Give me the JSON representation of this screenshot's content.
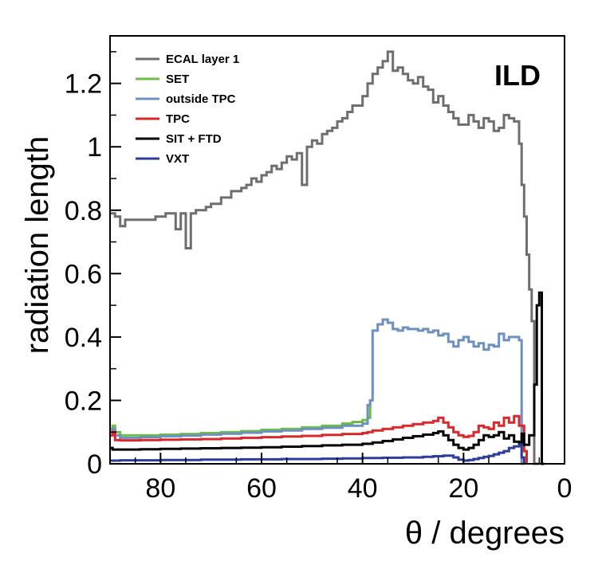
{
  "chart_data": {
    "type": "line",
    "title": "",
    "tag": "ILD",
    "xlabel": "θ / degrees",
    "ylabel": "radiation length",
    "xlim": [
      90,
      0
    ],
    "ylim": [
      0,
      1.35
    ],
    "x_reversed": true,
    "xticks": [
      80,
      60,
      40,
      20,
      0
    ],
    "xtick_labels": [
      "80",
      "60",
      "40",
      "20",
      "0"
    ],
    "yticks": [
      0,
      0.2,
      0.4,
      0.6,
      0.8,
      1,
      1.2
    ],
    "ytick_labels": [
      "0",
      "0.2",
      "0.4",
      "0.6",
      "0.8",
      "1",
      "1.2"
    ],
    "grid": false,
    "legend_position": "top-left",
    "line_style": "step",
    "series": [
      {
        "name": "ECAL layer 1",
        "color": "#6e6e6e",
        "x": [
          90,
          89,
          88,
          87,
          86,
          85,
          84,
          83,
          82,
          81,
          80,
          79,
          78,
          77,
          76,
          75,
          74,
          73,
          72,
          71,
          70,
          69,
          68,
          67,
          66,
          65,
          64,
          63,
          62,
          61,
          60,
          59,
          58,
          57,
          56,
          55,
          54,
          53,
          52,
          51,
          50,
          49,
          48,
          47,
          46,
          45,
          44,
          43,
          42,
          41,
          40,
          39,
          38,
          37,
          36,
          35,
          34,
          33,
          32,
          31,
          30,
          29,
          28,
          27,
          26,
          25,
          24,
          23,
          22,
          21,
          20,
          19,
          18,
          17,
          16,
          15,
          14,
          13,
          12,
          11,
          10,
          9,
          8.5,
          8,
          7.5,
          7,
          6.5,
          6,
          5.5,
          5
        ],
        "y": [
          0.79,
          0.78,
          0.75,
          0.77,
          0.77,
          0.77,
          0.77,
          0.77,
          0.77,
          0.78,
          0.78,
          0.79,
          0.79,
          0.74,
          0.79,
          0.68,
          0.79,
          0.8,
          0.8,
          0.81,
          0.82,
          0.82,
          0.84,
          0.84,
          0.86,
          0.86,
          0.87,
          0.88,
          0.9,
          0.89,
          0.91,
          0.92,
          0.94,
          0.93,
          0.95,
          0.97,
          0.96,
          0.98,
          0.88,
          1.0,
          1.02,
          1.01,
          1.04,
          1.05,
          1.06,
          1.08,
          1.09,
          1.11,
          1.13,
          1.13,
          1.16,
          1.2,
          1.23,
          1.25,
          1.27,
          1.3,
          1.24,
          1.25,
          1.23,
          1.21,
          1.2,
          1.22,
          1.19,
          1.18,
          1.14,
          1.16,
          1.13,
          1.11,
          1.09,
          1.07,
          1.07,
          1.1,
          1.08,
          1.06,
          1.09,
          1.08,
          1.05,
          1.06,
          1.1,
          1.09,
          1.08,
          1.01,
          0.88,
          0.78,
          0.66,
          0.55,
          0.45,
          0.0,
          0.0,
          0.0
        ]
      },
      {
        "name": "SET",
        "color": "#6cbd45",
        "x": [
          90,
          89.5,
          89,
          88,
          86,
          84,
          80,
          76,
          72,
          68,
          64,
          60,
          56,
          52,
          48,
          44,
          42,
          40,
          39,
          38.5
        ],
        "y": [
          0.11,
          0.12,
          0.1,
          0.09,
          0.09,
          0.09,
          0.092,
          0.094,
          0.097,
          0.1,
          0.103,
          0.107,
          0.11,
          0.115,
          0.12,
          0.127,
          0.132,
          0.138,
          0.145,
          0.2
        ]
      },
      {
        "name": "outside TPC",
        "color": "#6d8fc2",
        "x": [
          90,
          89.5,
          89,
          88,
          84,
          80,
          76,
          72,
          68,
          64,
          60,
          56,
          52,
          48,
          44,
          40,
          39,
          38.5,
          38,
          37,
          36,
          35,
          34,
          33,
          32,
          31,
          30,
          29,
          28,
          27,
          26,
          25,
          24,
          23,
          22,
          21,
          20,
          19,
          18,
          17,
          16,
          15,
          14,
          13,
          12,
          11,
          10,
          9,
          8.5,
          8
        ],
        "y": [
          0.1,
          0.11,
          0.09,
          0.082,
          0.084,
          0.087,
          0.089,
          0.092,
          0.095,
          0.098,
          0.102,
          0.105,
          0.11,
          0.114,
          0.12,
          0.127,
          0.185,
          0.2,
          0.42,
          0.44,
          0.455,
          0.445,
          0.425,
          0.42,
          0.43,
          0.425,
          0.425,
          0.42,
          0.425,
          0.415,
          0.42,
          0.405,
          0.41,
          0.385,
          0.37,
          0.39,
          0.4,
          0.385,
          0.37,
          0.38,
          0.36,
          0.375,
          0.37,
          0.41,
          0.39,
          0.4,
          0.4,
          0.39,
          0.0,
          0.0
        ]
      },
      {
        "name": "TPC",
        "color": "#d9282b",
        "x": [
          90,
          89.5,
          89,
          88,
          84,
          80,
          76,
          72,
          68,
          64,
          60,
          56,
          52,
          48,
          44,
          40,
          39,
          38,
          36,
          34,
          32,
          30,
          28,
          26,
          25,
          24,
          23,
          22,
          21,
          20,
          19,
          18,
          17,
          16,
          15,
          14,
          13,
          12,
          11,
          10,
          9,
          8,
          7.5
        ],
        "y": [
          0.09,
          0.1,
          0.075,
          0.074,
          0.075,
          0.076,
          0.077,
          0.078,
          0.08,
          0.082,
          0.084,
          0.086,
          0.088,
          0.091,
          0.094,
          0.097,
          0.1,
          0.105,
          0.11,
          0.115,
          0.12,
          0.125,
          0.13,
          0.135,
          0.145,
          0.13,
          0.115,
          0.1,
          0.09,
          0.085,
          0.088,
          0.1,
          0.12,
          0.115,
          0.11,
          0.13,
          0.12,
          0.145,
          0.13,
          0.15,
          0.12,
          0.04,
          0.0
        ]
      },
      {
        "name": "SIT + FTD",
        "color": "#000000",
        "x": [
          90,
          89.5,
          88,
          84,
          80,
          76,
          72,
          68,
          64,
          60,
          56,
          52,
          48,
          44,
          40,
          38,
          36,
          34,
          32,
          30,
          28,
          26,
          25,
          24,
          23,
          22,
          21,
          20,
          19,
          18,
          17,
          16,
          15,
          14,
          13,
          12,
          11,
          10,
          9,
          8.5,
          8,
          7,
          6,
          5.5,
          5,
          4.5,
          4
        ],
        "y": [
          0.05,
          0.045,
          0.045,
          0.046,
          0.047,
          0.048,
          0.049,
          0.05,
          0.051,
          0.052,
          0.054,
          0.056,
          0.058,
          0.06,
          0.063,
          0.067,
          0.072,
          0.077,
          0.082,
          0.087,
          0.092,
          0.097,
          0.102,
          0.09,
          0.075,
          0.06,
          0.05,
          0.045,
          0.05,
          0.06,
          0.075,
          0.09,
          0.085,
          0.09,
          0.1,
          0.08,
          0.09,
          0.07,
          0.06,
          0.095,
          0.06,
          0.09,
          0.25,
          0.5,
          0.54,
          0.0,
          0.0
        ]
      },
      {
        "name": "VXT",
        "color": "#2d3c9a",
        "x": [
          90,
          88,
          84,
          80,
          76,
          72,
          68,
          64,
          60,
          56,
          52,
          48,
          44,
          40,
          36,
          32,
          28,
          26,
          24,
          22,
          21,
          20,
          19,
          18,
          17,
          16,
          15,
          14,
          13,
          12,
          11,
          10,
          9,
          8.5,
          8
        ],
        "y": [
          0.01,
          0.011,
          0.011,
          0.012,
          0.012,
          0.013,
          0.013,
          0.014,
          0.014,
          0.015,
          0.015,
          0.016,
          0.017,
          0.018,
          0.019,
          0.02,
          0.022,
          0.024,
          0.026,
          0.02,
          0.013,
          0.01,
          0.012,
          0.015,
          0.018,
          0.022,
          0.025,
          0.03,
          0.035,
          0.04,
          0.05,
          0.055,
          0.06,
          0.02,
          0.0
        ]
      }
    ]
  }
}
